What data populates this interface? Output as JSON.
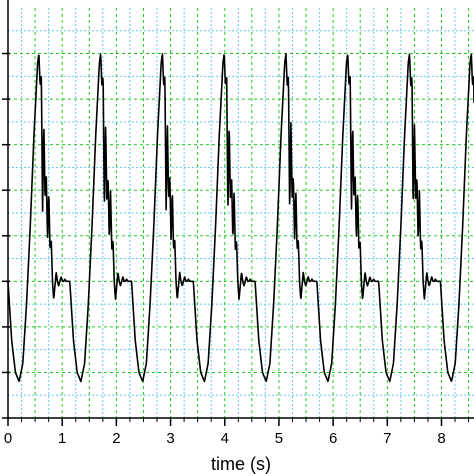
{
  "chart_data": {
    "type": "line",
    "xlabel": "time (s)",
    "ylabel": "",
    "title": "",
    "xlim": [
      0,
      8.6
    ],
    "ylim": [
      -3.0,
      6.0
    ],
    "x_ticks": [
      0,
      1,
      2,
      3,
      4,
      5,
      6,
      7,
      8
    ],
    "x_tick_labels": [
      "0",
      "1",
      "2",
      "3",
      "4",
      "5",
      "6",
      "7",
      "8"
    ],
    "y_ticks": [
      -3.0,
      -2.0,
      -1.0,
      0.0,
      1.0,
      2.0,
      3.0,
      4.0,
      5.0
    ],
    "grid": true,
    "legend": "none",
    "colors": {
      "line": "#000000",
      "major_grid": "#22cc22",
      "minor_grid": "#66ccee",
      "axis": "#000000"
    },
    "series": [
      {
        "period_s": 1.14,
        "phase_offset_s": 0.0,
        "waveform": {
          "phase": [
            0.0,
            0.06,
            0.12,
            0.18,
            0.24,
            0.3,
            0.36,
            0.42,
            0.48,
            0.5,
            0.52,
            0.54,
            0.56,
            0.58,
            0.6,
            0.62,
            0.64,
            0.66,
            0.68,
            0.7,
            0.72,
            0.74,
            0.76,
            0.78,
            0.8,
            0.82,
            0.84,
            0.86,
            0.88,
            0.9,
            0.92,
            0.94,
            0.96,
            0.98,
            1.0
          ],
          "value": [
            0.0,
            -1.3,
            -2.0,
            -2.2,
            -1.8,
            -0.5,
            1.2,
            3.2,
            4.8,
            5.0,
            4.3,
            4.5,
            1.5,
            3.5,
            1.8,
            2.3,
            0.9,
            2.0,
            0.7,
            0.9,
            0.0,
            -0.4,
            -0.1,
            0.2,
            0.0,
            -0.1,
            0.0,
            0.1,
            0.0,
            0.0,
            0.05,
            0.0,
            0.0,
            0.0,
            0.0
          ]
        }
      }
    ]
  }
}
